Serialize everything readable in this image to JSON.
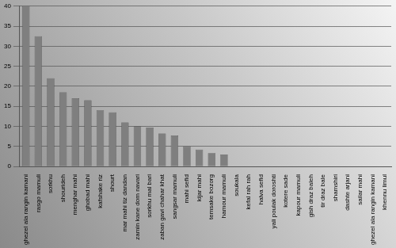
{
  "chart_data": {
    "type": "bar",
    "categories": [
      "ghezel ala rangin kamani",
      "rasgo mamuli",
      "sorkhu",
      "shourideh",
      "menghar mahi",
      "ghobad mahi",
      "kafshake riz",
      "shourt",
      "mar mahi tiz dandan",
      "zamin kane dom navari",
      "sorkhu mal bari",
      "zaban gavi chahar khat",
      "sangsar mamuli",
      "mahi sefid",
      "kijar mahi",
      "temsake bozorg",
      "hamour mamuli",
      "soukala",
      "kefal rah rah",
      "halva sefid",
      "yali poulak doroshti",
      "kotere sade",
      "kapour mamuli",
      "gish draz baleh",
      "tir draz bale",
      "shamshiri",
      "dashte arjani",
      "sailar mahi",
      "ghezel ala rangin kamani",
      "khennu limul"
    ],
    "values": [
      40,
      32.5,
      22,
      18.5,
      17,
      16.5,
      14,
      13.5,
      11,
      10,
      9.7,
      8.2,
      7.7,
      5,
      4.2,
      3.3,
      3,
      0,
      0,
      0,
      0,
      0,
      0,
      0,
      0,
      0,
      0,
      0,
      0,
      0
    ],
    "color": "#7f7f7f",
    "ylim": [
      0,
      40
    ],
    "yticks": [
      0,
      5,
      10,
      15,
      20,
      25,
      30,
      35,
      40
    ],
    "grid": true
  }
}
